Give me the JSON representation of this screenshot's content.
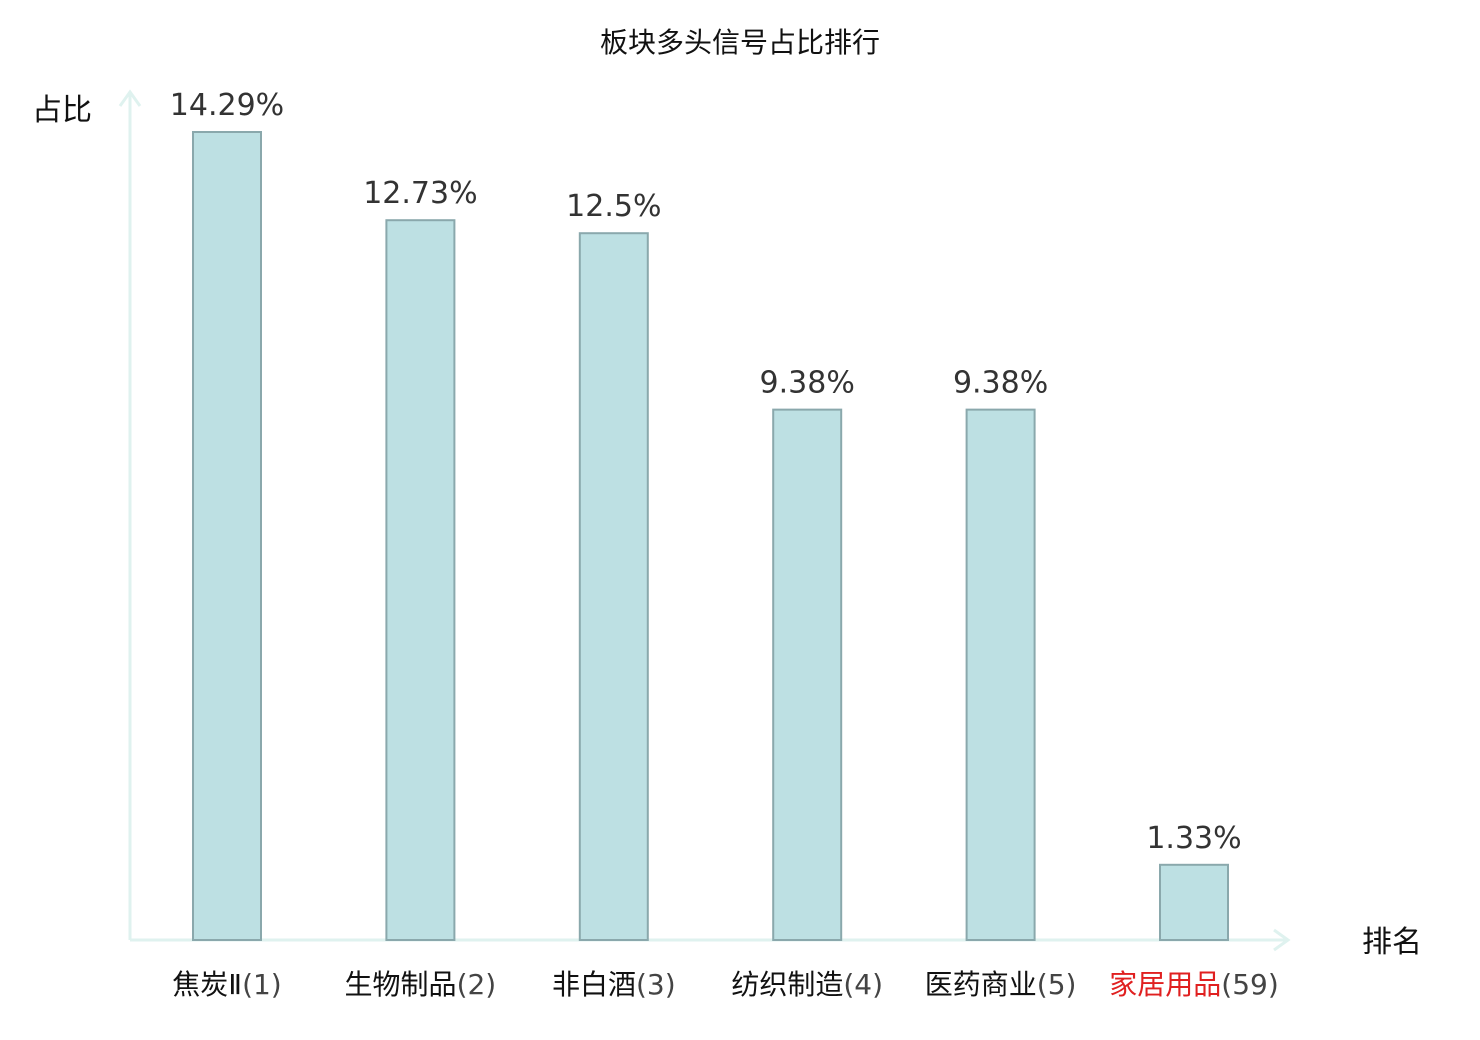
{
  "chart_data": {
    "type": "bar",
    "title": "板块多头信号占比排行",
    "ylabel": "占比",
    "xlabel": "排名",
    "categories": [
      "焦炭Ⅱ",
      "生物制品",
      "非白酒",
      "纺织制造",
      "医药商业",
      "家居用品"
    ],
    "ranks": [
      "(1)",
      "(2)",
      "(3)",
      "(4)",
      "(5)",
      "(59)"
    ],
    "values": [
      14.29,
      12.73,
      12.5,
      9.38,
      9.38,
      1.33
    ],
    "value_labels": [
      "14.29%",
      "12.73%",
      "12.5%",
      "9.38%",
      "9.38%",
      "1.33%"
    ],
    "highlight_index": 5,
    "grid": false,
    "legend": "none"
  },
  "colors": {
    "bar_fill": "#bde0e3",
    "bar_stroke": "#8aa8ac",
    "axis": "#dff2ef",
    "highlight_text": "#e02020"
  }
}
